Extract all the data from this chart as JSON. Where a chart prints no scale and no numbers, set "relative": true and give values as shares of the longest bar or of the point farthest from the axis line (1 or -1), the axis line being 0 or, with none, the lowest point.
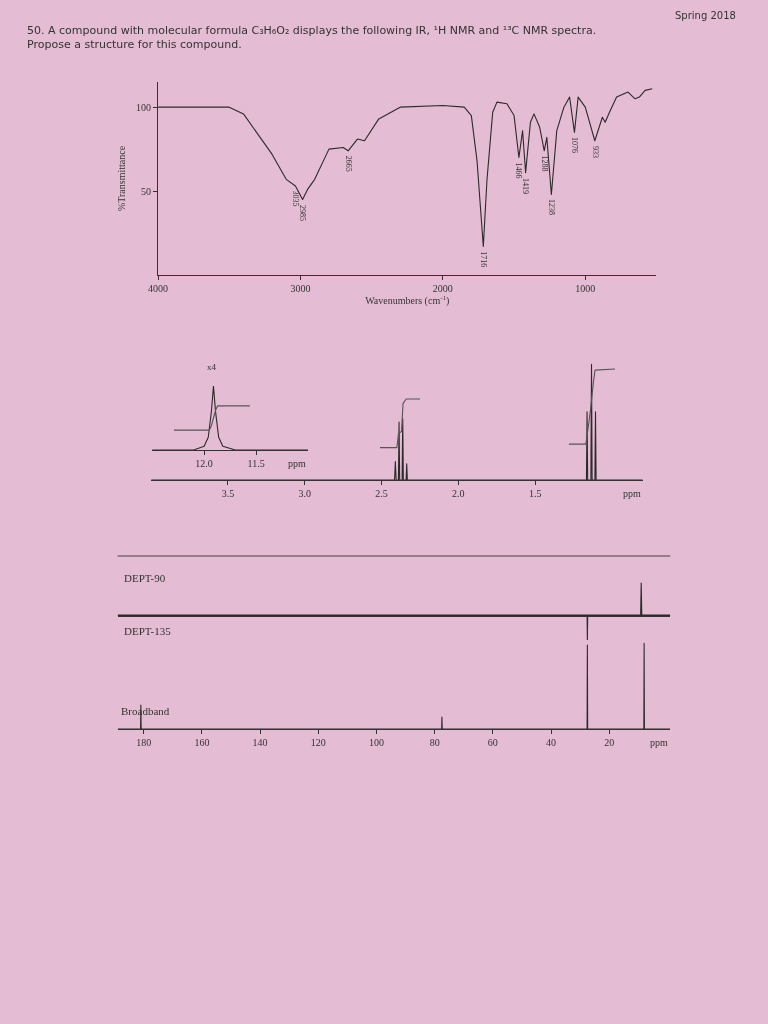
{
  "chart_data": [
    {
      "type": "line",
      "title": "50. A compound with molecular formula C₃H₆O₂ displays the following IR, ¹H NMR and ¹³C NMR spectra. Propose a structure for this compound.",
      "xlabel": "Wavenumbers (cm$^{-1}$)",
      "ylabel": "%Transmittance",
      "xlim": [
        4000,
        500
      ],
      "xticks": [
        4000,
        3000,
        2000,
        1000
      ],
      "ylim": [
        0,
        115
      ],
      "yticks": [
        50,
        100
      ],
      "series": [
        {
          "color": "#2b2b2b",
          "x": [
            4000,
            3500,
            3400,
            3200,
            3100,
            3035,
            2985,
            2950,
            2900,
            2800,
            2700,
            2665,
            2600,
            2550,
            2450,
            2300,
            2000,
            1850,
            1800,
            1760,
            1716,
            1690,
            1650,
            1620,
            1550,
            1500,
            1466,
            1440,
            1419,
            1385,
            1360,
            1320,
            1288,
            1270,
            1238,
            1200,
            1150,
            1110,
            1076,
            1050,
            1000,
            933,
            880,
            860,
            830,
            780,
            700,
            650,
            620,
            580,
            530
          ],
          "values": [
            100,
            100,
            96,
            72,
            57,
            53,
            45,
            51,
            57,
            75,
            76,
            74,
            81,
            80,
            93,
            100,
            101,
            100,
            95,
            68,
            17,
            57,
            97,
            103,
            102,
            95,
            70,
            86,
            61,
            91,
            96,
            88,
            74,
            82,
            48,
            86,
            100,
            106,
            85,
            106,
            100,
            80,
            94,
            91,
            97,
            106,
            109,
            105,
            106,
            110,
            111
          ]
        }
      ],
      "annotations": [
        {
          "text": "3035",
          "x": 3035,
          "y": 53
        },
        {
          "text": "2985",
          "x": 2985,
          "y": 45
        },
        {
          "text": "2665",
          "x": 2665,
          "y": 74
        },
        {
          "text": "1716",
          "x": 1716,
          "y": 17
        },
        {
          "text": "1466",
          "x": 1466,
          "y": 70
        },
        {
          "text": "1419",
          "x": 1419,
          "y": 61
        },
        {
          "text": "1288",
          "x": 1288,
          "y": 74
        },
        {
          "text": "1238",
          "x": 1238,
          "y": 48
        },
        {
          "text": "1076",
          "x": 1076,
          "y": 85
        },
        {
          "text": "933",
          "x": 933,
          "y": 80
        },
        "Spring 2018"
      ]
    },
    {
      "type": "line",
      "xlabel": "ppm",
      "xlim": [
        4.0,
        0.8
      ],
      "xticks": [
        3.5,
        {
          "value": 3,
          "label": "3.0"
        },
        2.5,
        {
          "value": 2,
          "label": "2.0"
        },
        1.5
      ],
      "relative": true,
      "tick_labels": "x",
      "series": [
        {
          "color": "#2b2b2b",
          "x": [
            4.0,
            2.415,
            2.41,
            2.405,
            2.39,
            2.386,
            2.382,
            2.366,
            2.362,
            2.358,
            2.34,
            2.336,
            2.332,
            1.166,
            1.162,
            1.158,
            1.137,
            1.133,
            1.129,
            1.111,
            1.107,
            1.103,
            0.8
          ],
          "values": [
            0,
            0,
            0.16,
            0,
            0,
            0.5,
            0,
            0,
            0.53,
            0,
            0,
            0.14,
            0,
            0,
            0.59,
            0,
            0,
            1,
            0,
            0,
            0.59,
            0,
            0
          ]
        },
        {
          "color": "#555555",
          "x": [
            2.51,
            2.4,
            2.39,
            2.37,
            2.36,
            2.34,
            2.25
          ],
          "values": [
            0.28,
            0.28,
            0.4,
            0.42,
            0.66,
            0.7,
            0.7
          ]
        },
        {
          "color": "#555555",
          "x": [
            1.28,
            1.17,
            1.16,
            1.14,
            1.12,
            1.11,
            0.98
          ],
          "values": [
            0.31,
            0.31,
            0.4,
            0.6,
            0.85,
            0.95,
            0.96
          ]
        }
      ]
    },
    {
      "type": "line",
      "xlabel": "ppm",
      "xlim": [
        12.5,
        11.0
      ],
      "xticks": [
        {
          "value": 12,
          "label": "12.0"
        },
        11.5
      ],
      "relative": true,
      "tick_labels": "x",
      "series": [
        {
          "color": "#2b2b2b",
          "x": [
            12.5,
            12.1,
            12.0,
            11.96,
            11.93,
            11.91,
            11.89,
            11.86,
            11.82,
            11.7,
            11.0
          ],
          "values": [
            0,
            0,
            0.06,
            0.2,
            0.6,
            1,
            0.6,
            0.2,
            0.06,
            0,
            0
          ]
        },
        {
          "color": "#555555",
          "x": [
            12.29,
            11.95,
            11.93,
            11.91,
            11.89,
            11.87,
            11.56
          ],
          "values": [
            0.31,
            0.31,
            0.38,
            0.5,
            0.62,
            0.69,
            0.69
          ]
        }
      ],
      "annotations": [
        "x4"
      ]
    },
    {
      "type": "line",
      "title": "DEPT-90",
      "xlim": [
        189,
        -1
      ],
      "relative": true,
      "tick_labels": false,
      "series": [
        {
          "color": "#2b2b2b",
          "x": [
            189,
            9.2,
            9,
            8.8,
            -1
          ],
          "values": [
            0,
            0,
            1,
            0,
            0
          ]
        }
      ]
    },
    {
      "type": "line",
      "title": "DEPT-135",
      "xlim": [
        189,
        -1
      ],
      "relative": true,
      "tick_labels": false,
      "series": [
        {
          "color": "#2b2b2b",
          "x": [
            189,
            27.6,
            27.5,
            27.4,
            -1
          ],
          "values": [
            0,
            0,
            -1,
            0,
            0
          ]
        }
      ]
    },
    {
      "type": "line",
      "title": "Broadband",
      "xlabel": "ppm",
      "xlim": [
        189,
        -1
      ],
      "xticks": [
        180,
        160,
        140,
        120,
        100,
        80,
        60,
        40,
        20
      ],
      "relative": true,
      "tick_labels": "x",
      "series": [
        {
          "color": "#2b2b2b",
          "x": [
            189,
            181.1,
            181,
            180.9,
            77.6,
            77.5,
            77.4,
            27.6,
            27.5,
            27.4,
            8.1,
            8,
            7.9,
            -1
          ],
          "values": [
            0,
            0,
            0.28,
            0,
            0,
            0.14,
            0,
            0,
            0.98,
            0,
            0,
            1,
            0,
            0
          ]
        }
      ]
    }
  ]
}
